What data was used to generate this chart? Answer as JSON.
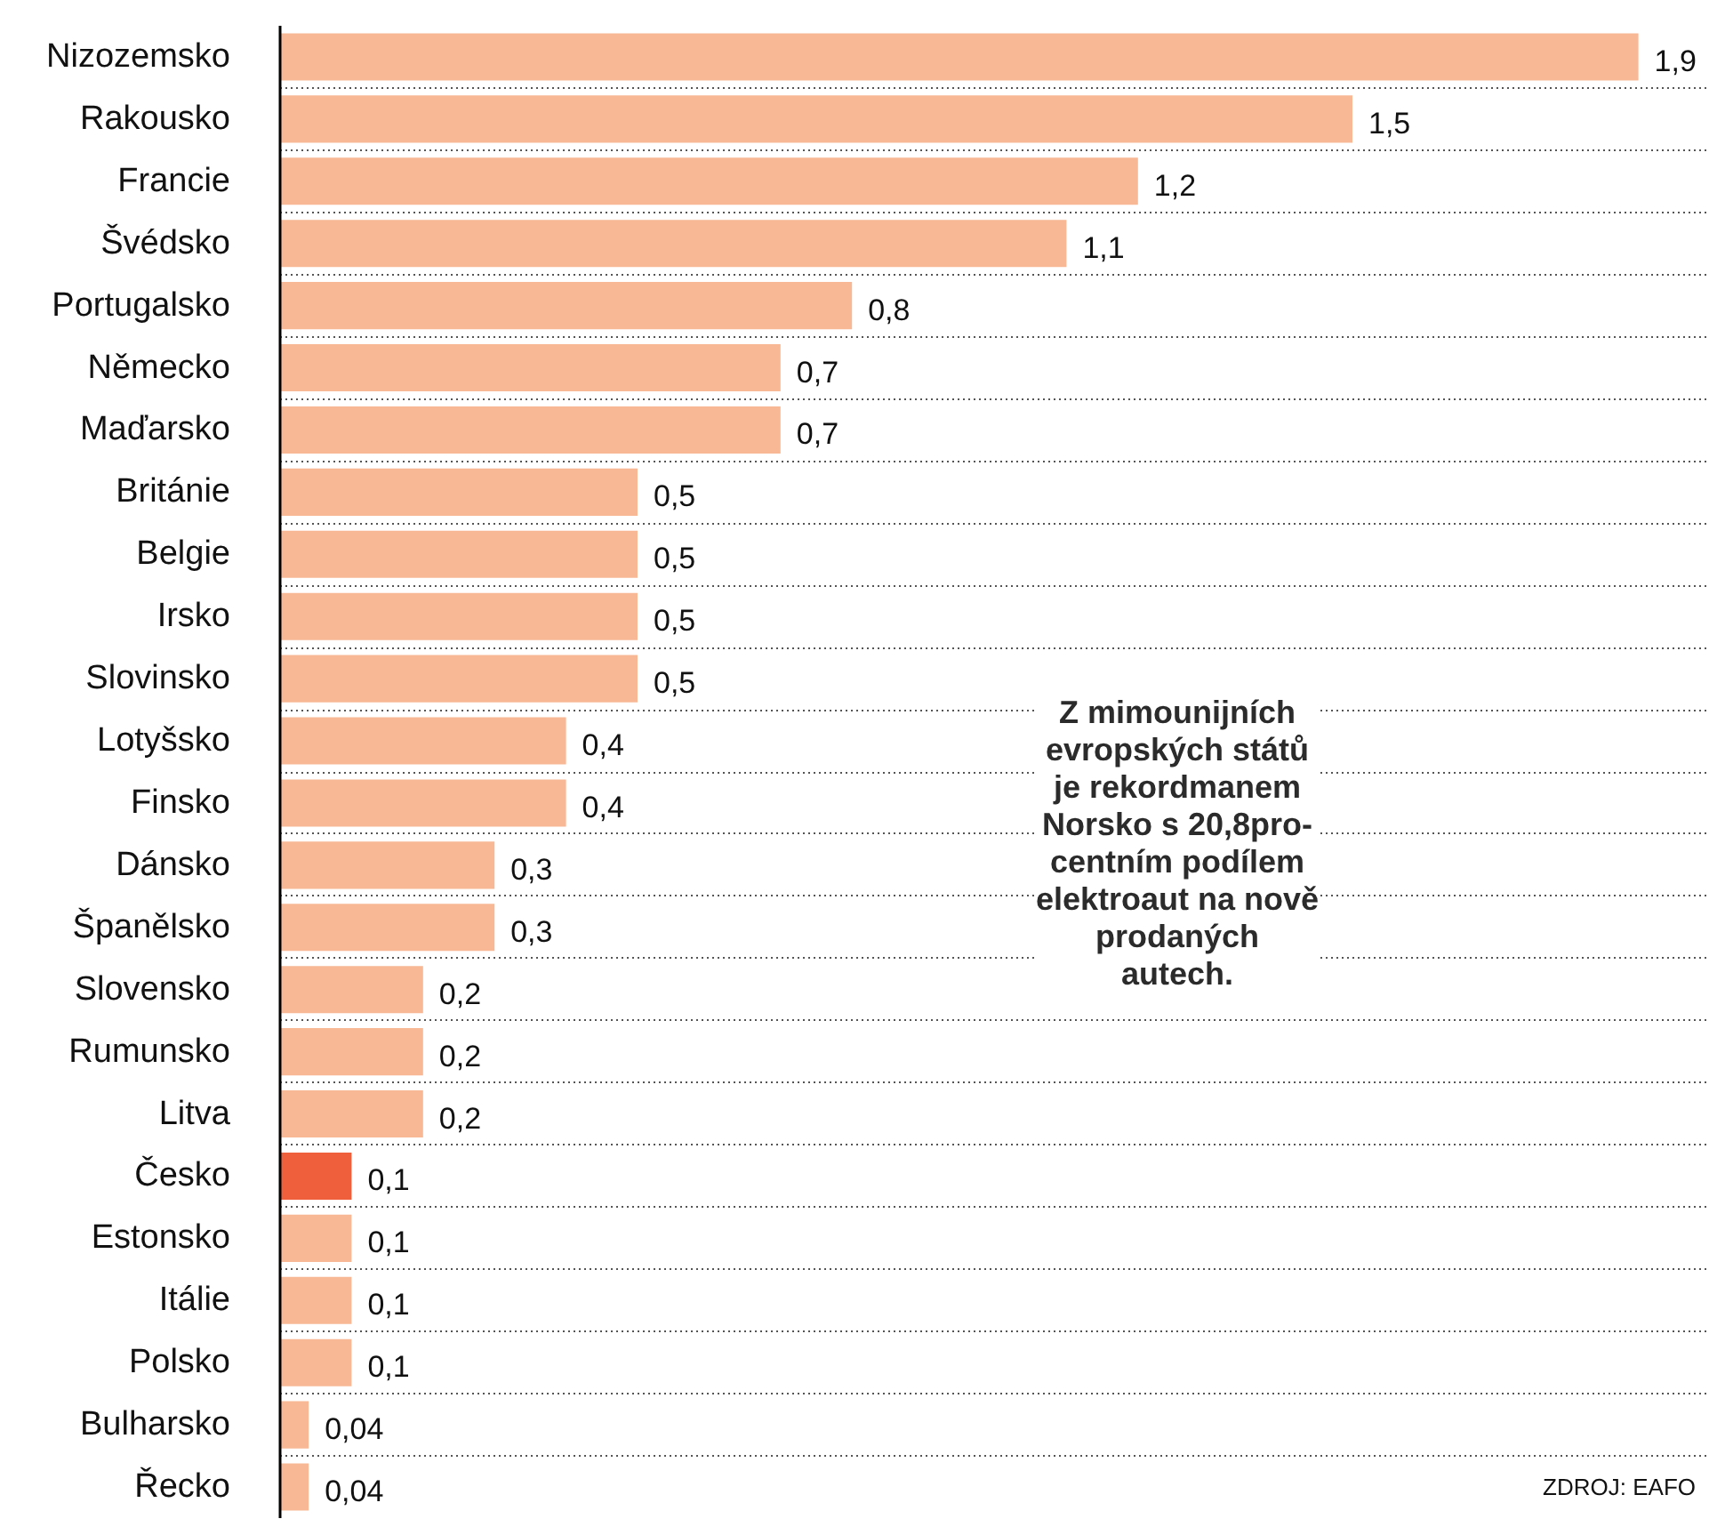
{
  "chart_data": {
    "type": "bar",
    "orientation": "horizontal",
    "categories": [
      "Nizozemsko",
      "Rakousko",
      "Francie",
      "Švédsko",
      "Portugalsko",
      "Německo",
      "Maďarsko",
      "Británie",
      "Belgie",
      "Irsko",
      "Slovinsko",
      "Lotyšsko",
      "Finsko",
      "Dánsko",
      "Španělsko",
      "Slovensko",
      "Rumunsko",
      "Litva",
      "Česko",
      "Estonsko",
      "Itálie",
      "Polsko",
      "Bulharsko",
      "Řecko"
    ],
    "values": [
      1.9,
      1.5,
      1.2,
      1.1,
      0.8,
      0.7,
      0.7,
      0.5,
      0.5,
      0.5,
      0.5,
      0.4,
      0.4,
      0.3,
      0.3,
      0.2,
      0.2,
      0.2,
      0.1,
      0.1,
      0.1,
      0.1,
      0.04,
      0.04
    ],
    "value_labels": [
      "1,9",
      "1,5",
      "1,2",
      "1,1",
      "0,8",
      "0,7",
      "0,7",
      "0,5",
      "0,5",
      "0,5",
      "0,5",
      "0,4",
      "0,4",
      "0,3",
      "0,3",
      "0,2",
      "0,2",
      "0,2",
      "0,1",
      "0,1",
      "0,1",
      "0,1",
      "0,04",
      "0,04"
    ],
    "colors": [
      "#f8b896",
      "#f8b896",
      "#f8b896",
      "#f8b896",
      "#f8b896",
      "#f8b896",
      "#f8b896",
      "#f8b896",
      "#f8b896",
      "#f8b896",
      "#f8b896",
      "#f8b896",
      "#f8b896",
      "#f8b896",
      "#f8b896",
      "#f8b896",
      "#f8b896",
      "#f8b896",
      "#ef5f3c",
      "#f8b896",
      "#f8b896",
      "#f8b896",
      "#f8b896",
      "#f8b896"
    ],
    "xlim": [
      0,
      2.0
    ],
    "grid": "y",
    "annotations": [
      "Z mimounijních\nevropských států\nje rekordmanem\nNorsko s 20,8pro-\ncentním podílem\nelektroaut na nově\nprodaných\nautech.",
      "ZDROJ: EAFO"
    ]
  }
}
